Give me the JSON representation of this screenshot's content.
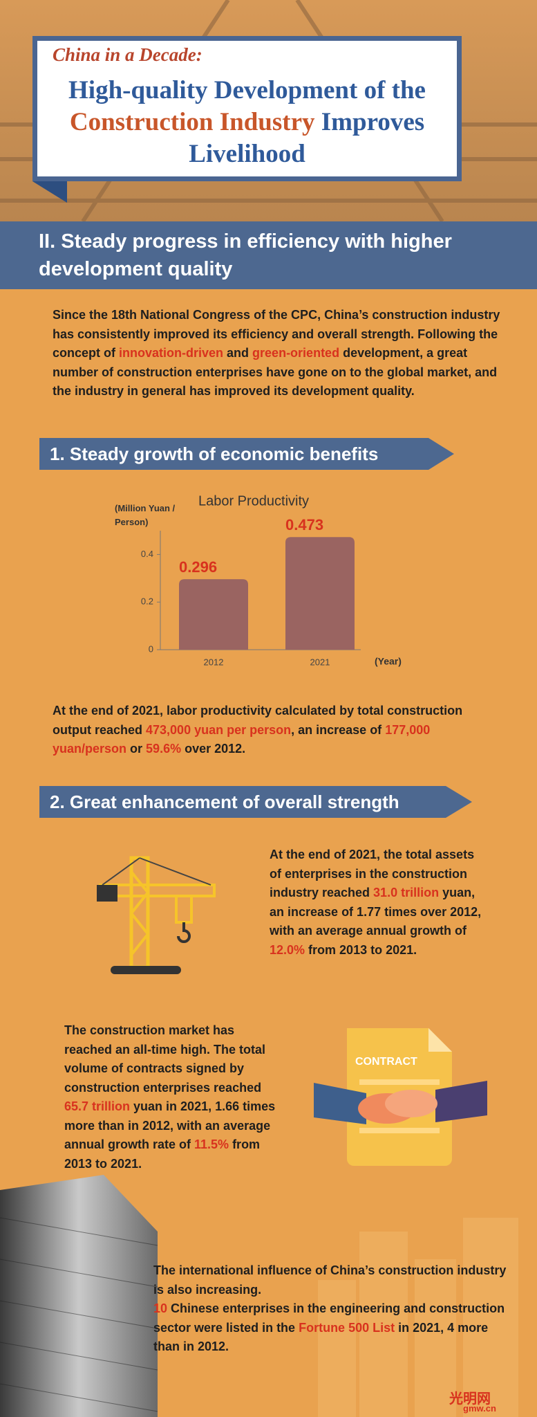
{
  "header": {
    "kicker": "China in a Decade:",
    "title_lines": [
      [
        "High-quality Development of the"
      ],
      [
        {
          "text": "Construction Industry",
          "emphasis": true
        },
        " Improves"
      ],
      [
        "Livelihood"
      ]
    ]
  },
  "section": {
    "heading": "II. Steady progress in efficiency with higher development quality",
    "banners": [
      "1. Steady growth of economic benefits",
      "2. Great enhancement of overall strength"
    ]
  },
  "paragraphs": [
    [
      "Since the 18th National Congress of the CPC, China’s construction industry has consistently improved its efficiency and overall strength. Following the concept of ",
      {
        "text": "innovation-driven",
        "emphasis": true
      },
      " and ",
      {
        "text": "green-oriented",
        "emphasis": true
      },
      " development, a great number of construction enterprises have gone on to the global market, and the industry in general has improved its development quality."
    ],
    [
      "At the end of 2021, labor productivity calculated by total construction output reached ",
      {
        "text": "473,000 yuan per person",
        "emphasis": true
      },
      ", an increase of ",
      {
        "text": "177,000 yuan/person",
        "emphasis": true
      },
      " or ",
      {
        "text": "59.6%",
        "emphasis": true
      },
      " over 2012."
    ],
    [
      "At the end of 2021, the total assets of enterprises in the construction industry reached ",
      {
        "text": "31.0 trillion",
        "emphasis": true
      },
      " yuan, an increase of 1.77 times over 2012, with an average annual growth of ",
      {
        "text": "12.0%",
        "emphasis": true
      },
      " from 2013 to 2021."
    ],
    [
      "The construction market has reached an all-time high. The total volume of contracts signed by construction enterprises reached ",
      {
        "text": "65.7 trillion",
        "emphasis": true
      },
      " yuan in 2021, 1.66 times more than in 2012, with an average annual growth rate of ",
      {
        "text": "11.5%",
        "emphasis": true
      },
      " from 2013 to 2021."
    ],
    [
      "The international influence of China’s construction industry is also increasing."
    ],
    [
      {
        "text": "10",
        "emphasis": true
      },
      " Chinese enterprises in the engineering and construction sector were listed in the ",
      {
        "text": "Fortune 500 List",
        "emphasis": true
      },
      " in 2021, 4 more than in 2012."
    ]
  ],
  "contract_label": "CONTRACT",
  "logo": {
    "name": "光明网",
    "url": "gmw.cn"
  },
  "chart_data": {
    "type": "bar",
    "title": "Labor Productivity",
    "y_label": "(Million Yuan / Person)",
    "x_label": "(Year)",
    "categories": [
      "2012",
      "2021"
    ],
    "values": [
      0.296,
      0.473
    ],
    "color": "#9a6461",
    "value_label_color": "#d8321e",
    "ylim": [
      0,
      0.5
    ],
    "yticks": [
      0,
      0.2,
      0.4
    ],
    "grid": false
  }
}
